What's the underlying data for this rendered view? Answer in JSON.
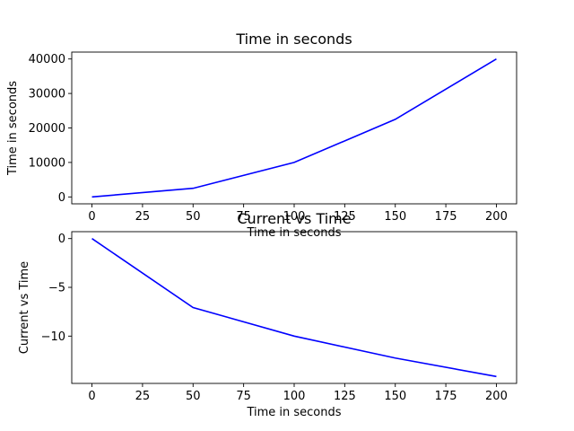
{
  "chart_data": [
    {
      "type": "line",
      "title": "Time in seconds",
      "xlabel": "Time in seconds",
      "ylabel": "Time in seconds",
      "x": [
        0,
        50,
        100,
        150,
        200
      ],
      "series": [
        {
          "values": [
            0,
            2500,
            10000,
            22500,
            40000
          ],
          "color": "#0000ff"
        }
      ],
      "xlim": [
        -10,
        210
      ],
      "ylim": [
        -2000,
        42000
      ],
      "xticks": [
        0,
        25,
        50,
        75,
        100,
        125,
        150,
        175,
        200
      ],
      "yticks": [
        0,
        10000,
        20000,
        30000,
        40000
      ],
      "grid": false
    },
    {
      "type": "line",
      "title": "Current vs Time",
      "xlabel": "Time in seconds",
      "ylabel": "Current vs Time",
      "x": [
        0,
        50,
        100,
        150,
        200
      ],
      "series": [
        {
          "values": [
            0,
            -7.07,
            -10,
            -12.25,
            -14.14
          ],
          "color": "#0000ff"
        }
      ],
      "xlim": [
        -10,
        210
      ],
      "ylim": [
        -14.85,
        0.71
      ],
      "xticks": [
        0,
        25,
        50,
        75,
        100,
        125,
        150,
        175,
        200
      ],
      "yticks": [
        0,
        -5,
        -10
      ],
      "ytick_labels": [
        "0",
        "−5",
        "−10"
      ],
      "grid": false
    }
  ]
}
